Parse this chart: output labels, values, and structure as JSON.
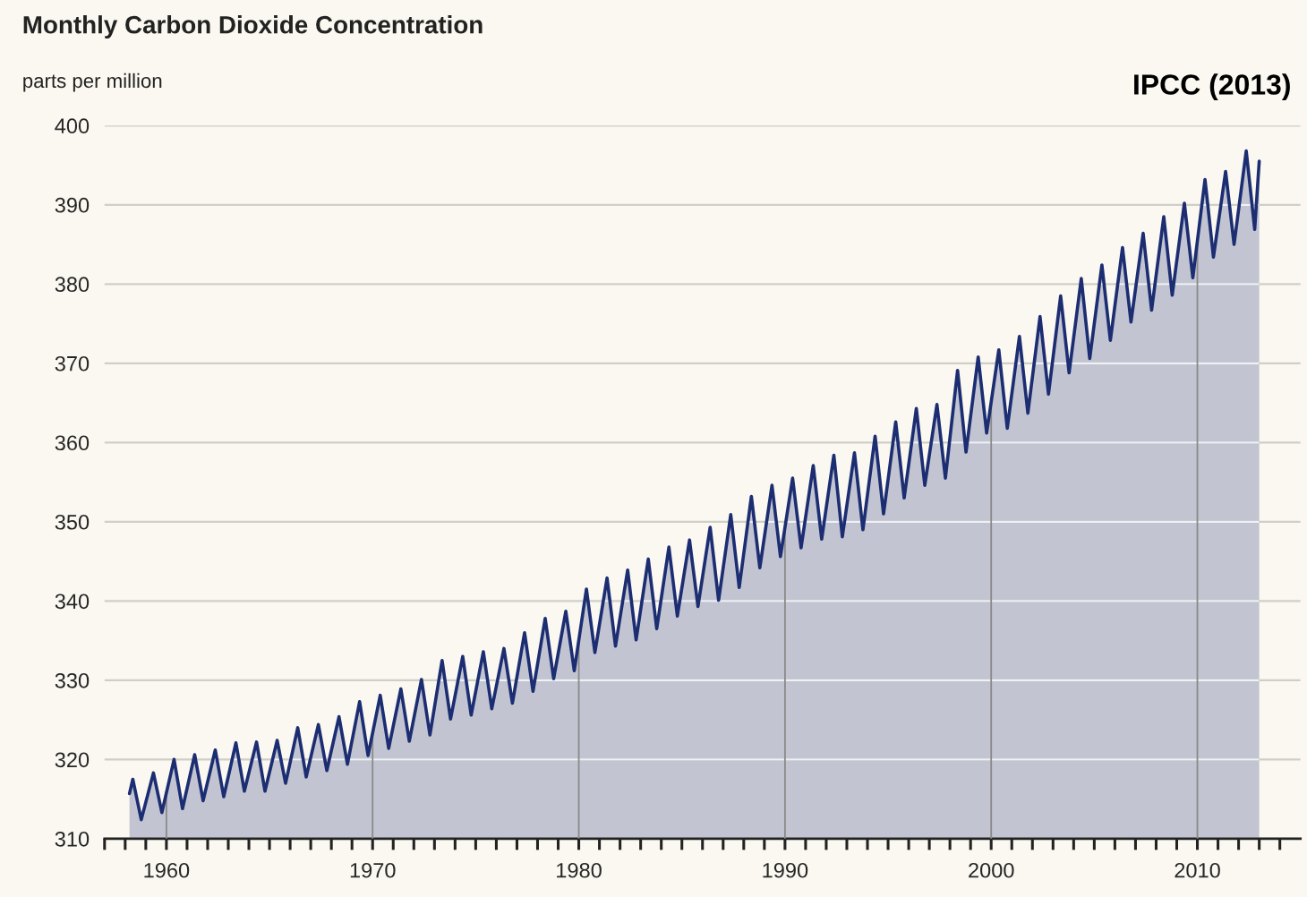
{
  "chart_data": {
    "type": "area",
    "title": "Monthly Carbon Dioxide Concentration",
    "ylabel": "parts per million",
    "annotations": [
      "IPCC (2013)"
    ],
    "x": [
      1958.21,
      1958.37,
      1958.78,
      1959.37,
      1959.78,
      1960.37,
      1960.78,
      1961.37,
      1961.78,
      1962.37,
      1962.78,
      1963.37,
      1963.78,
      1964.37,
      1964.78,
      1965.37,
      1965.78,
      1966.37,
      1966.78,
      1967.37,
      1967.78,
      1968.37,
      1968.78,
      1969.37,
      1969.78,
      1970.37,
      1970.78,
      1971.37,
      1971.78,
      1972.37,
      1972.78,
      1973.37,
      1973.78,
      1974.37,
      1974.78,
      1975.37,
      1975.78,
      1976.37,
      1976.78,
      1977.37,
      1977.78,
      1978.37,
      1978.78,
      1979.37,
      1979.78,
      1980.37,
      1980.78,
      1981.37,
      1981.78,
      1982.37,
      1982.78,
      1983.37,
      1983.78,
      1984.37,
      1984.78,
      1985.37,
      1985.78,
      1986.37,
      1986.78,
      1987.37,
      1987.78,
      1988.37,
      1988.78,
      1989.37,
      1989.78,
      1990.37,
      1990.78,
      1991.37,
      1991.78,
      1992.37,
      1992.78,
      1993.37,
      1993.78,
      1994.37,
      1994.78,
      1995.37,
      1995.78,
      1996.37,
      1996.78,
      1997.37,
      1997.78,
      1998.37,
      1998.78,
      1999.37,
      1999.78,
      2000.37,
      2000.78,
      2001.37,
      2001.78,
      2002.37,
      2002.78,
      2003.37,
      2003.78,
      2004.37,
      2004.78,
      2005.37,
      2005.78,
      2006.37,
      2006.78,
      2007.37,
      2007.78,
      2008.37,
      2008.78,
      2009.37,
      2009.78,
      2010.37,
      2010.78,
      2011.37,
      2011.78,
      2012.37,
      2012.78,
      2013.0
    ],
    "series": [
      {
        "color": "#1c2d72",
        "values": [
          315.7,
          317.5,
          312.4,
          318.3,
          313.3,
          320.0,
          313.8,
          320.6,
          314.8,
          321.2,
          315.3,
          322.1,
          316.0,
          322.2,
          316.0,
          322.4,
          317.0,
          324.0,
          317.8,
          324.4,
          318.6,
          325.4,
          319.4,
          327.3,
          320.5,
          328.1,
          321.4,
          328.9,
          322.3,
          330.1,
          323.1,
          332.5,
          325.1,
          333.0,
          325.6,
          333.6,
          326.4,
          334.0,
          327.1,
          336.0,
          328.6,
          337.8,
          330.2,
          338.7,
          331.2,
          341.5,
          333.5,
          342.9,
          334.3,
          343.9,
          335.1,
          345.3,
          336.5,
          346.8,
          338.1,
          347.7,
          339.3,
          349.3,
          340.1,
          350.9,
          341.7,
          353.2,
          344.2,
          354.6,
          345.6,
          355.5,
          346.7,
          357.1,
          347.8,
          358.4,
          348.1,
          358.7,
          349.0,
          360.8,
          351.0,
          362.6,
          353.0,
          364.3,
          354.6,
          364.8,
          355.5,
          369.1,
          358.8,
          370.8,
          361.2,
          371.7,
          361.8,
          373.4,
          363.7,
          375.9,
          366.1,
          378.5,
          368.8,
          380.7,
          370.6,
          382.4,
          372.9,
          384.6,
          375.2,
          386.4,
          376.7,
          388.5,
          378.6,
          390.2,
          380.8,
          393.2,
          383.4,
          394.2,
          385.0,
          396.8,
          386.9,
          395.5
        ]
      }
    ],
    "xlim": [
      1957,
      2015
    ],
    "xticks": [
      {
        "value": 1957,
        "label": null
      },
      {
        "value": 1958,
        "label": null
      },
      {
        "value": 1959,
        "label": null
      },
      1960,
      {
        "value": 1961,
        "label": null
      },
      {
        "value": 1962,
        "label": null
      },
      {
        "value": 1963,
        "label": null
      },
      {
        "value": 1964,
        "label": null
      },
      {
        "value": 1965,
        "label": null
      },
      {
        "value": 1966,
        "label": null
      },
      {
        "value": 1967,
        "label": null
      },
      {
        "value": 1968,
        "label": null
      },
      {
        "value": 1969,
        "label": null
      },
      1970,
      {
        "value": 1971,
        "label": null
      },
      {
        "value": 1972,
        "label": null
      },
      {
        "value": 1973,
        "label": null
      },
      {
        "value": 1974,
        "label": null
      },
      {
        "value": 1975,
        "label": null
      },
      {
        "value": 1976,
        "label": null
      },
      {
        "value": 1977,
        "label": null
      },
      {
        "value": 1978,
        "label": null
      },
      {
        "value": 1979,
        "label": null
      },
      1980,
      {
        "value": 1981,
        "label": null
      },
      {
        "value": 1982,
        "label": null
      },
      {
        "value": 1983,
        "label": null
      },
      {
        "value": 1984,
        "label": null
      },
      {
        "value": 1985,
        "label": null
      },
      {
        "value": 1986,
        "label": null
      },
      {
        "value": 1987,
        "label": null
      },
      {
        "value": 1988,
        "label": null
      },
      {
        "value": 1989,
        "label": null
      },
      1990,
      {
        "value": 1991,
        "label": null
      },
      {
        "value": 1992,
        "label": null
      },
      {
        "value": 1993,
        "label": null
      },
      {
        "value": 1994,
        "label": null
      },
      {
        "value": 1995,
        "label": null
      },
      {
        "value": 1996,
        "label": null
      },
      {
        "value": 1997,
        "label": null
      },
      {
        "value": 1998,
        "label": null
      },
      {
        "value": 1999,
        "label": null
      },
      2000,
      {
        "value": 2001,
        "label": null
      },
      {
        "value": 2002,
        "label": null
      },
      {
        "value": 2003,
        "label": null
      },
      {
        "value": 2004,
        "label": null
      },
      {
        "value": 2005,
        "label": null
      },
      {
        "value": 2006,
        "label": null
      },
      {
        "value": 2007,
        "label": null
      },
      {
        "value": 2008,
        "label": null
      },
      {
        "value": 2009,
        "label": null
      },
      2010,
      {
        "value": 2011,
        "label": null
      },
      {
        "value": 2012,
        "label": null
      },
      {
        "value": 2013,
        "label": null
      },
      {
        "value": 2014,
        "label": null
      }
    ],
    "ylim": [
      310,
      400
    ],
    "yticks": [
      310,
      320,
      330,
      340,
      350,
      360,
      370,
      380,
      390,
      400
    ],
    "grid": true,
    "legend": false,
    "marker": "none",
    "line_style": "solid"
  }
}
